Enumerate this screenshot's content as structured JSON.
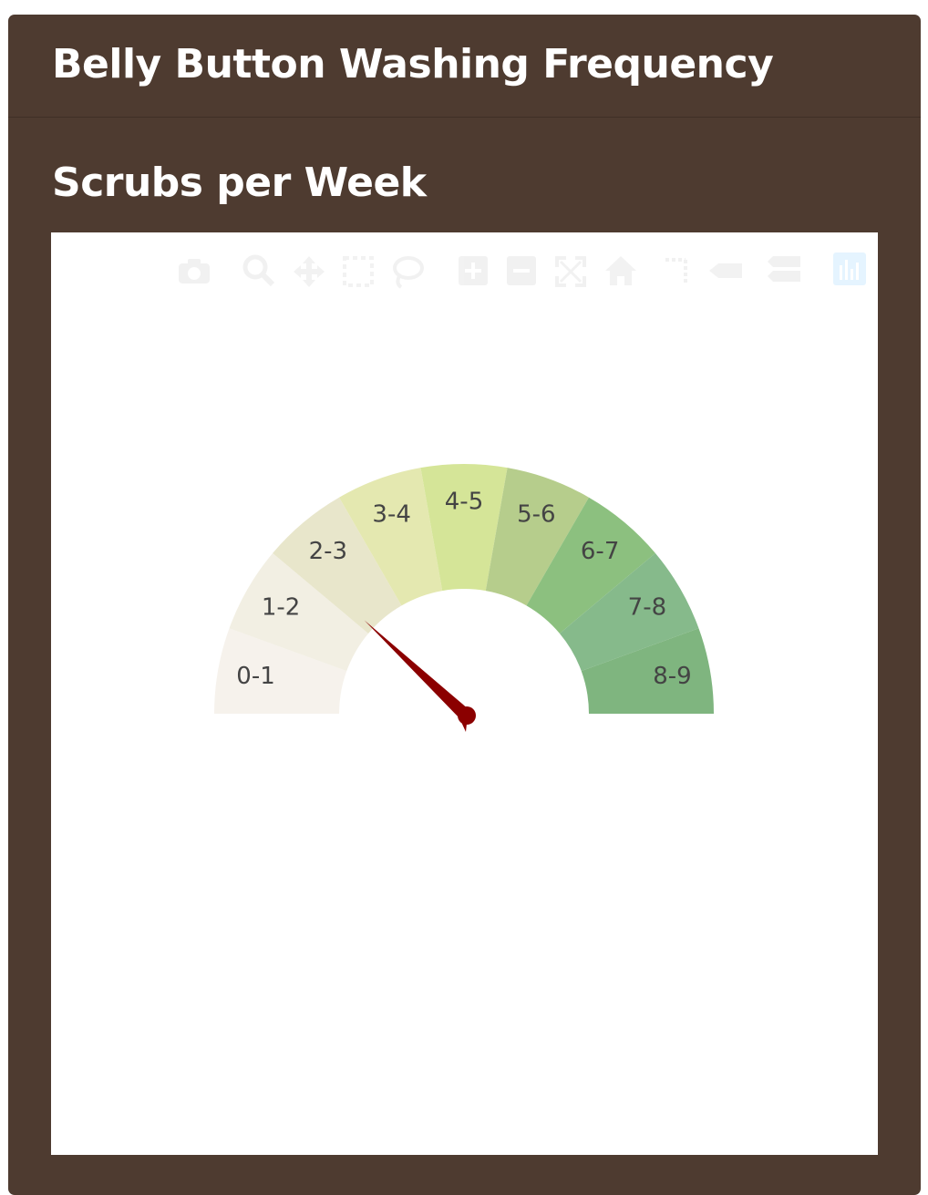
{
  "header": {
    "title": "Belly Button Washing Frequency"
  },
  "section": {
    "title": "Scrubs per Week"
  },
  "modebar": {
    "buttons": [
      {
        "name": "camera-icon"
      },
      {
        "name": "zoom-icon"
      },
      {
        "name": "pan-icon"
      },
      {
        "name": "box-select-icon"
      },
      {
        "name": "lasso-select-icon"
      },
      {
        "name": "zoom-in-icon"
      },
      {
        "name": "zoom-out-icon"
      },
      {
        "name": "autoscale-icon"
      },
      {
        "name": "reset-axes-icon"
      },
      {
        "name": "spike-lines-icon"
      },
      {
        "name": "hover-closest-icon"
      },
      {
        "name": "hover-compare-icon"
      },
      {
        "name": "plotly-logo-icon"
      }
    ]
  },
  "chart_data": {
    "type": "gauge",
    "range": [
      0,
      9
    ],
    "value": 2,
    "categories": [
      "0-1",
      "1-2",
      "2-3",
      "3-4",
      "4-5",
      "5-6",
      "6-7",
      "7-8",
      "8-9"
    ],
    "colors": [
      "#f6f2ec",
      "#f2efe3",
      "#e8e6cb",
      "#e4e8b0",
      "#d5e598",
      "#b6cd8c",
      "#8cc07f",
      "#86ba8b",
      "#7fb57f"
    ],
    "needle_color": "#8b0000"
  }
}
